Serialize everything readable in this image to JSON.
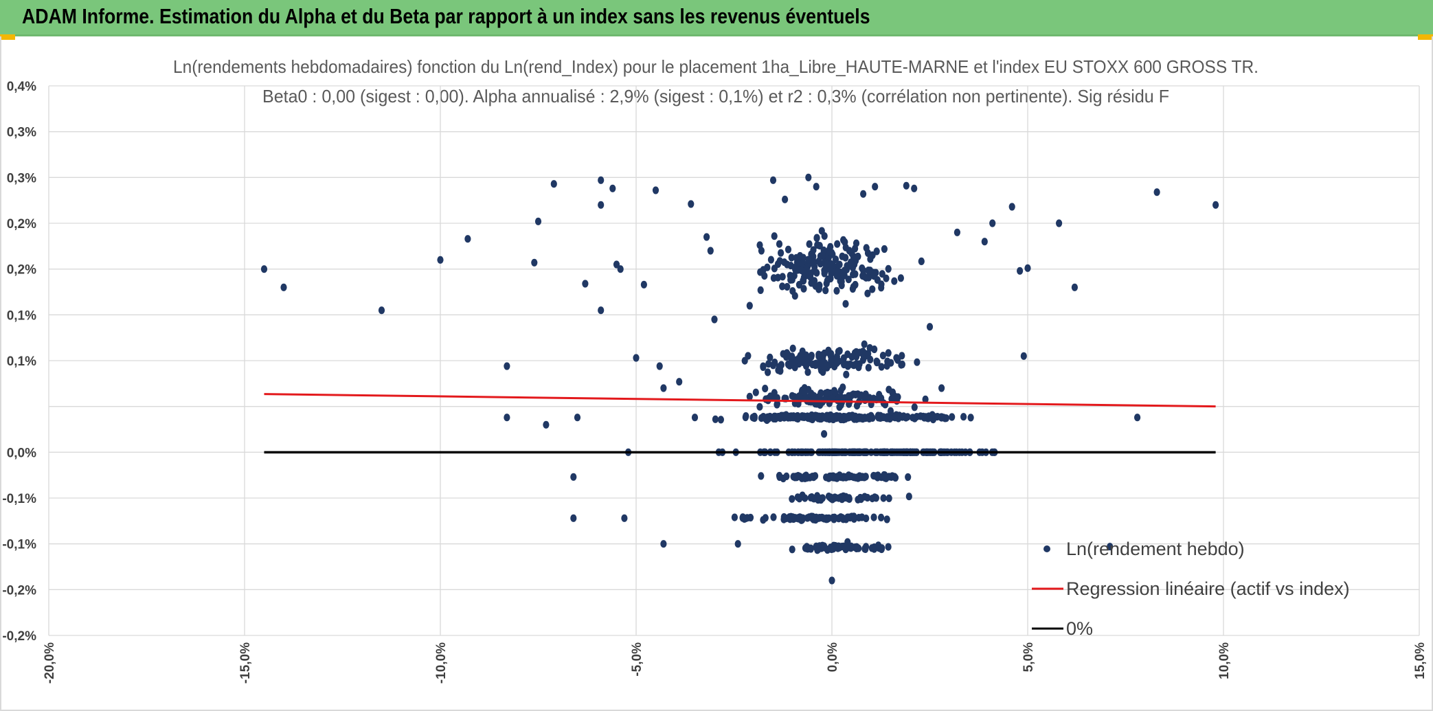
{
  "banner": {
    "title": "ADAM Informe. Estimation du Alpha et du Beta par rapport à un index sans les revenus éventuels"
  },
  "colors": {
    "banner_bg": "#7ac67b",
    "accent": "#f2b705",
    "points": "#203864",
    "regression": "#e3191c",
    "zero_line": "#000000",
    "grid": "#d9d9d9"
  },
  "chart_data": {
    "type": "scatter",
    "title": "Ln(rendements hebdomadaires) fonction du Ln(rend_Index) pour le placement 1ha_Libre_HAUTE-MARNE et l'index EU STOXX 600 GROSS TR.",
    "subtitle": "Beta0 : 0,00 (sigest : 0,00). Alpha annualisé : 2,9% (sigest : 0,1%) et r2 : 0,3% (corrélation non pertinente). Sig résidu F",
    "xlim": [
      -20,
      15
    ],
    "ylim": [
      -0.2,
      0.4
    ],
    "x_ticks": [
      -20,
      -15,
      -10,
      -5,
      0,
      5,
      10,
      15
    ],
    "x_tick_labels": [
      "-20,0%",
      "-15,0%",
      "-10,0%",
      "-5,0%",
      "0,0%",
      "5,0%",
      "10,0%",
      "15,0%"
    ],
    "y_ticks": [
      0.4,
      0.35,
      0.3,
      0.25,
      0.2,
      0.15,
      0.1,
      0.05,
      0.0,
      -0.05,
      -0.1,
      -0.15,
      -0.2
    ],
    "y_tick_labels": [
      "0,4%",
      "0,3%",
      "0,3%",
      "0,2%",
      "0,2%",
      "0,1%",
      "0,1%",
      "0,0%",
      "-0,1%",
      "-0,1%",
      "-0,2%",
      "-0,2%"
    ],
    "y_label_values": [
      0.4,
      0.35,
      0.3,
      0.25,
      0.2,
      0.15,
      0.1,
      0.0,
      -0.05,
      -0.1,
      -0.15,
      -0.2
    ],
    "grid": true,
    "legend_position": "bottom-right",
    "series": [
      {
        "name": "Ln(rendement hebdo)",
        "kind": "scatter",
        "points": [
          [
            -14.5,
            0.2
          ],
          [
            -14.0,
            0.18
          ],
          [
            -11.5,
            0.155
          ],
          [
            -10.0,
            0.21
          ],
          [
            -9.3,
            0.233
          ],
          [
            -8.3,
            0.094
          ],
          [
            -8.3,
            0.038
          ],
          [
            -7.5,
            0.252
          ],
          [
            -7.6,
            0.207
          ],
          [
            -7.3,
            0.03
          ],
          [
            -7.1,
            0.293
          ],
          [
            -5.9,
            0.297
          ],
          [
            -5.9,
            0.27
          ],
          [
            -5.9,
            0.155
          ],
          [
            -6.3,
            0.184
          ],
          [
            -6.5,
            0.038
          ],
          [
            -6.6,
            -0.027
          ],
          [
            -6.6,
            -0.072
          ],
          [
            -5.6,
            0.288
          ],
          [
            -5.5,
            0.205
          ],
          [
            -5.4,
            0.2
          ],
          [
            -5.3,
            -0.072
          ],
          [
            -5.2,
            0.0
          ],
          [
            -5.0,
            0.103
          ],
          [
            -4.8,
            0.183
          ],
          [
            -4.5,
            0.286
          ],
          [
            -4.4,
            0.094
          ],
          [
            -4.3,
            0.07
          ],
          [
            -4.3,
            -0.1
          ],
          [
            -3.9,
            0.077
          ],
          [
            -3.6,
            0.271
          ],
          [
            -3.2,
            0.235
          ],
          [
            -3.1,
            0.22
          ],
          [
            -3.0,
            0.145
          ],
          [
            -2.4,
            -0.1
          ],
          [
            -1.5,
            0.297
          ],
          [
            -1.2,
            0.276
          ],
          [
            -0.6,
            0.3
          ],
          [
            -0.4,
            0.29
          ],
          [
            0.8,
            0.282
          ],
          [
            1.1,
            0.29
          ],
          [
            1.9,
            0.291
          ],
          [
            2.1,
            0.288
          ],
          [
            3.9,
            0.23
          ],
          [
            4.1,
            0.25
          ],
          [
            4.6,
            0.268
          ],
          [
            4.8,
            0.198
          ],
          [
            4.9,
            0.105
          ],
          [
            5.0,
            0.201
          ],
          [
            5.8,
            0.25
          ],
          [
            6.2,
            0.18
          ],
          [
            7.1,
            -0.103
          ],
          [
            7.8,
            0.038
          ],
          [
            8.3,
            0.284
          ],
          [
            9.8,
            0.27
          ],
          [
            0.0,
            -0.14
          ],
          [
            -2.1,
            0.16
          ],
          [
            2.5,
            0.137
          ],
          [
            3.2,
            0.24
          ],
          [
            -1.8,
            0.22
          ],
          [
            0.4,
            -0.098
          ],
          [
            1.5,
            0.045
          ],
          [
            -0.2,
            0.02
          ],
          [
            2.8,
            0.07
          ],
          [
            -3.5,
            0.038
          ]
        ]
      },
      {
        "name": "Regression linéaire (actif vs index)",
        "kind": "line",
        "x": [
          -14.5,
          9.8
        ],
        "y": [
          0.0635,
          0.05
        ]
      },
      {
        "name": "0%",
        "kind": "line",
        "x": [
          -14.5,
          9.8
        ],
        "y": [
          0.0,
          0.0
        ]
      }
    ],
    "bands": [
      {
        "y": 0.2,
        "x_range": [
          -2.5,
          2.5
        ],
        "count": 200,
        "spread": 0.05
      },
      {
        "y": 0.1,
        "x_range": [
          -3,
          3
        ],
        "count": 130,
        "spread": 0.022
      },
      {
        "y": 0.06,
        "x_range": [
          -3,
          3
        ],
        "count": 110,
        "spread": 0.016
      },
      {
        "y": 0.038,
        "x_range": [
          -3.8,
          4.3
        ],
        "count": 210,
        "spread": 0.004
      },
      {
        "y": 0.0,
        "x_range": [
          -3.7,
          5.3
        ],
        "count": 180,
        "spread": 0.0
      },
      {
        "y": -0.027,
        "x_range": [
          -2.4,
          2.9
        ],
        "count": 85,
        "spread": 0.003
      },
      {
        "y": -0.05,
        "x_range": [
          -2.0,
          2.5
        ],
        "count": 50,
        "spread": 0.004
      },
      {
        "y": -0.072,
        "x_range": [
          -3.7,
          2.5
        ],
        "count": 80,
        "spread": 0.003
      },
      {
        "y": -0.104,
        "x_range": [
          -1.5,
          2.0
        ],
        "count": 65,
        "spread": 0.004
      }
    ]
  }
}
